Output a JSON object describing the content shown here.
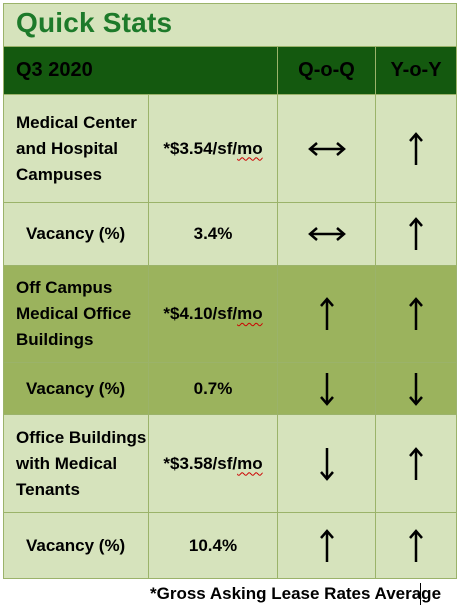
{
  "title": "Quick Stats",
  "header": {
    "period": "Q3 2020",
    "qoq": "Q-o-Q",
    "yoy": "Y-o-Y"
  },
  "rows": [
    {
      "label_lines": [
        "Medical Center",
        "and Hospital",
        "Campuses"
      ],
      "value": "*$3.54/sf/mo",
      "qoq": "↔",
      "yoy": "↑",
      "qoq_icon": "left-right-arrow-icon",
      "yoy_icon": "up-arrow-icon"
    },
    {
      "label_lines": [
        "Vacancy (%)"
      ],
      "value": "3.4%",
      "qoq": "↔",
      "yoy": "↑",
      "qoq_icon": "left-right-arrow-icon",
      "yoy_icon": "up-arrow-icon"
    },
    {
      "label_lines": [
        "Off Campus",
        "Medical Office",
        "Buildings"
      ],
      "value": "*$4.10/sf/mo",
      "qoq": "↑",
      "yoy": "↑",
      "qoq_icon": "up-arrow-icon",
      "yoy_icon": "up-arrow-icon"
    },
    {
      "label_lines": [
        "Vacancy (%)"
      ],
      "value": "0.7%",
      "qoq": "↓",
      "yoy": "↓",
      "qoq_icon": "down-arrow-icon",
      "yoy_icon": "down-arrow-icon"
    },
    {
      "label_lines": [
        "Office Buildings",
        "with Medical",
        "Tenants"
      ],
      "value": "*$3.58/sf/mo",
      "qoq": "↓",
      "yoy": "↑",
      "qoq_icon": "down-arrow-icon",
      "yoy_icon": "up-arrow-icon"
    },
    {
      "label_lines": [
        "Vacancy (%)"
      ],
      "value": "10.4%",
      "qoq": "↑",
      "yoy": "↑",
      "qoq_icon": "up-arrow-icon",
      "yoy_icon": "up-arrow-icon"
    }
  ],
  "footnote": "*Gross Asking Lease Rates Average",
  "colors": {
    "title_green": "#1d7a2a",
    "header_green": "#14590f",
    "light_band": "#d6e3bc",
    "dark_band": "#9bb35d",
    "border": "#9bb36a"
  }
}
